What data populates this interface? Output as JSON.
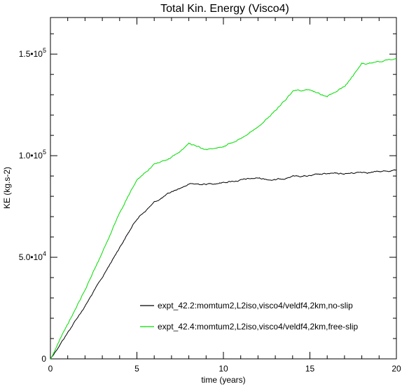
{
  "chart_data": {
    "type": "line",
    "title": "Total Kin. Energy (Visco4)",
    "xlabel": "time (years)",
    "ylabel": "KE (kg.s-2)",
    "xlim": [
      0,
      20
    ],
    "ylim": [
      0,
      168000
    ],
    "grid": false,
    "legend_position": "bottom-right",
    "x_ticks": [
      {
        "value": 0,
        "label": "0"
      },
      {
        "value": 5,
        "label": "5"
      },
      {
        "value": 10,
        "label": "10"
      },
      {
        "value": 15,
        "label": "15"
      },
      {
        "value": 20,
        "label": "20"
      }
    ],
    "y_ticks": [
      {
        "value": 0,
        "mantissa": "0",
        "exponent": ""
      },
      {
        "value": 50000,
        "mantissa": "5.0•10",
        "exponent": "4"
      },
      {
        "value": 100000,
        "mantissa": "1.0•10",
        "exponent": "5"
      },
      {
        "value": 150000,
        "mantissa": "1.5•10",
        "exponent": "5"
      }
    ],
    "series": [
      {
        "name": "expt_42.2:momtum2,L2iso,visco4/veldf4,2km,no-slip",
        "color": "#000000",
        "x": [
          0,
          1,
          2,
          3,
          4,
          5,
          6,
          7,
          8,
          9,
          10,
          11,
          12,
          13,
          14,
          15,
          16,
          17,
          18,
          19,
          20
        ],
        "y": [
          0,
          13000,
          26000,
          40000,
          55000,
          69000,
          77000,
          82000,
          86000,
          86000,
          87000,
          88000,
          89000,
          88000,
          90000,
          90000,
          91000,
          91000,
          92000,
          92000,
          93000
        ]
      },
      {
        "name": "expt_42.4:momtum2,L2iso,visco4/veldf4,2km,free-slip",
        "color": "#00dd00",
        "x": [
          0,
          1,
          2,
          3,
          4,
          5,
          6,
          7,
          8,
          9,
          10,
          11,
          12,
          13,
          14,
          15,
          16,
          17,
          18,
          19,
          20
        ],
        "y": [
          0,
          17000,
          34000,
          52000,
          72000,
          88000,
          96000,
          99000,
          106000,
          103000,
          104000,
          109000,
          114000,
          122000,
          132000,
          132000,
          129000,
          134000,
          145000,
          146000,
          148000
        ]
      }
    ]
  }
}
